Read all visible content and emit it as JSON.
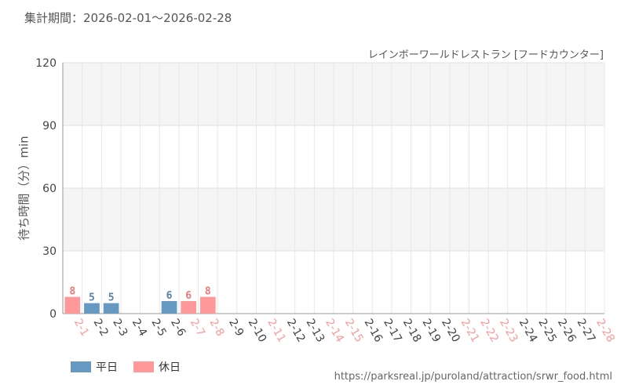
{
  "header": {
    "period": "集計期間：2026-02-01～2026-02-28",
    "subtitle": "レインボーワールドレストラン [フードカウンター]"
  },
  "colors": {
    "weekday": "#6699c2",
    "holiday": "#ff9999",
    "weekday_label": "#5a7fa8",
    "holiday_label": "#f07777",
    "grid_band": "#f5f5f5",
    "grid_line": "#e0e0e0"
  },
  "legend": {
    "weekday": "平日",
    "holiday": "休日"
  },
  "footer": {
    "url": "https://parksreal.jp/puroland/attraction/srwr_food.html"
  },
  "chart_data": {
    "type": "bar",
    "ylabel": "待ち時間（分）min",
    "ylim": [
      0,
      120
    ],
    "yticks": [
      0,
      30,
      60,
      90,
      120
    ],
    "categories": [
      "2-1",
      "2-2",
      "2-3",
      "2-4",
      "2-5",
      "2-6",
      "2-7",
      "2-8",
      "2-9",
      "2-10",
      "2-11",
      "2-12",
      "2-13",
      "2-14",
      "2-15",
      "2-16",
      "2-17",
      "2-18",
      "2-19",
      "2-20",
      "2-21",
      "2-22",
      "2-23",
      "2-24",
      "2-25",
      "2-26",
      "2-27",
      "2-28"
    ],
    "holiday": [
      true,
      false,
      false,
      false,
      false,
      false,
      true,
      true,
      false,
      false,
      true,
      false,
      false,
      true,
      true,
      false,
      false,
      false,
      false,
      false,
      true,
      true,
      true,
      false,
      false,
      false,
      false,
      true
    ],
    "values": [
      8,
      5,
      5,
      null,
      null,
      6,
      6,
      8,
      null,
      null,
      null,
      null,
      null,
      null,
      null,
      null,
      null,
      null,
      null,
      null,
      null,
      null,
      null,
      null,
      null,
      null,
      null,
      null
    ]
  }
}
